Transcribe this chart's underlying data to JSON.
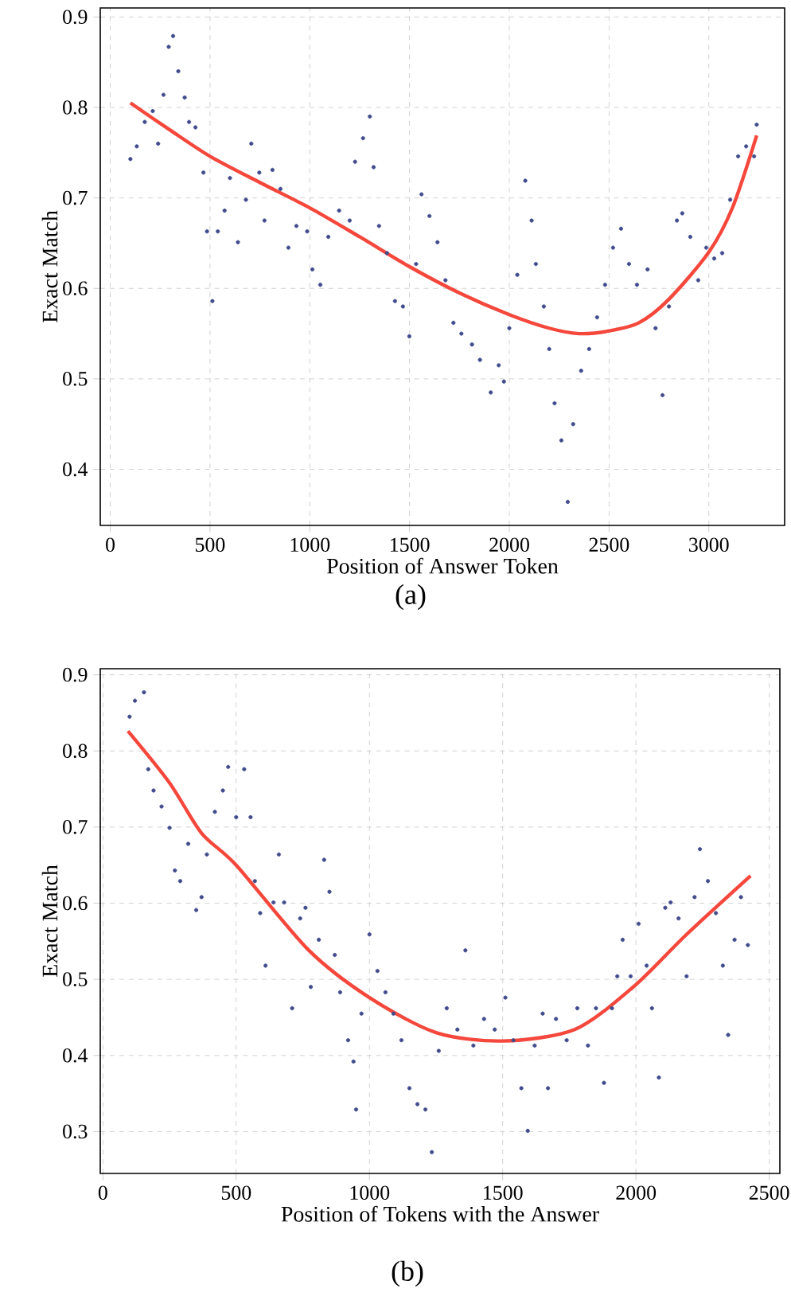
{
  "chart_data": [
    {
      "type": "scatter",
      "xlabel": "Position of Answer Token",
      "ylabel": "Exact Match",
      "annotations": [
        "(a)"
      ],
      "grid": true,
      "xlim": [
        -50,
        3380
      ],
      "ylim": [
        0.338,
        0.91
      ],
      "xticks": [
        0,
        500,
        1000,
        1500,
        2000,
        2500,
        3000
      ],
      "yticks": [
        0.4,
        0.5,
        0.6,
        0.7,
        0.8,
        0.9
      ],
      "series": [
        {
          "type": "scatter",
          "marker": "circle",
          "color": "#414b8c",
          "x": [
            101,
            133,
            173,
            213,
            240,
            267,
            293,
            315,
            341,
            373,
            395,
            427,
            467,
            485,
            512,
            539,
            573,
            600,
            640,
            680,
            707,
            747,
            773,
            813,
            853,
            893,
            933,
            987,
            1013,
            1053,
            1093,
            1147,
            1200,
            1227,
            1267,
            1301,
            1320,
            1347,
            1387,
            1427,
            1467,
            1499,
            1533,
            1560,
            1600,
            1640,
            1680,
            1720,
            1760,
            1813,
            1853,
            1907,
            1947,
            1973,
            2000,
            2040,
            2080,
            2112,
            2133,
            2173,
            2200,
            2227,
            2261,
            2293,
            2320,
            2360,
            2400,
            2440,
            2480,
            2520,
            2560,
            2600,
            2640,
            2693,
            2733,
            2768,
            2800,
            2840,
            2867,
            2907,
            2947,
            2987,
            3027,
            3067,
            3107,
            3147,
            3187,
            3227,
            3240
          ],
          "values": [
            0.743,
            0.757,
            0.784,
            0.796,
            0.76,
            0.814,
            0.867,
            0.879,
            0.84,
            0.811,
            0.784,
            0.778,
            0.728,
            0.663,
            0.586,
            0.663,
            0.686,
            0.722,
            0.651,
            0.698,
            0.76,
            0.728,
            0.675,
            0.731,
            0.71,
            0.645,
            0.669,
            0.663,
            0.621,
            0.604,
            0.657,
            0.686,
            0.675,
            0.74,
            0.766,
            0.79,
            0.734,
            0.669,
            0.639,
            0.586,
            0.58,
            0.547,
            0.627,
            0.704,
            0.68,
            0.651,
            0.609,
            0.562,
            0.55,
            0.538,
            0.521,
            0.485,
            0.515,
            0.497,
            0.556,
            0.615,
            0.719,
            0.675,
            0.627,
            0.58,
            0.533,
            0.473,
            0.432,
            0.364,
            0.45,
            0.509,
            0.533,
            0.568,
            0.604,
            0.645,
            0.666,
            0.627,
            0.604,
            0.621,
            0.556,
            0.482,
            0.58,
            0.675,
            0.683,
            0.657,
            0.609,
            0.645,
            0.633,
            0.639,
            0.698,
            0.746,
            0.757,
            0.746,
            0.781
          ]
        },
        {
          "type": "line",
          "marker": "none",
          "color": "#f5473b",
          "x": [
            101,
            300,
            500,
            750,
            1000,
            1250,
            1500,
            1750,
            2000,
            2200,
            2350,
            2500,
            2650,
            2800,
            3000,
            3120,
            3240
          ],
          "values": [
            0.805,
            0.775,
            0.746,
            0.717,
            0.689,
            0.657,
            0.624,
            0.595,
            0.571,
            0.556,
            0.55,
            0.553,
            0.562,
            0.588,
            0.64,
            0.69,
            0.769
          ]
        }
      ]
    },
    {
      "type": "scatter",
      "xlabel": "Position of Tokens with the Answer",
      "ylabel": "Exact Match",
      "annotations": [
        "(b)"
      ],
      "grid": true,
      "xlim": [
        -10,
        2540
      ],
      "ylim": [
        0.245,
        0.908
      ],
      "xticks": [
        0,
        500,
        1000,
        1500,
        2000,
        2500
      ],
      "yticks": [
        0.3,
        0.4,
        0.5,
        0.6,
        0.7,
        0.8,
        0.9
      ],
      "series": [
        {
          "type": "scatter",
          "marker": "circle",
          "color": "#414b8c",
          "x": [
            100,
            120,
            154,
            170,
            190,
            220,
            250,
            270,
            290,
            320,
            350,
            370,
            390,
            420,
            450,
            470,
            500,
            530,
            554,
            570,
            590,
            610,
            640,
            660,
            680,
            710,
            740,
            760,
            780,
            810,
            830,
            850,
            870,
            890,
            920,
            940,
            950,
            970,
            1000,
            1030,
            1060,
            1090,
            1120,
            1150,
            1180,
            1210,
            1234,
            1260,
            1290,
            1330,
            1360,
            1390,
            1430,
            1470,
            1510,
            1540,
            1570,
            1594,
            1620,
            1650,
            1670,
            1700,
            1740,
            1780,
            1820,
            1850,
            1880,
            1910,
            1930,
            1950,
            1980,
            2010,
            2040,
            2060,
            2086,
            2110,
            2130,
            2160,
            2190,
            2220,
            2240,
            2270,
            2300,
            2326,
            2346,
            2370,
            2394,
            2420
          ],
          "values": [
            0.845,
            0.866,
            0.877,
            0.776,
            0.748,
            0.727,
            0.699,
            0.643,
            0.629,
            0.678,
            0.591,
            0.608,
            0.664,
            0.72,
            0.748,
            0.779,
            0.713,
            0.776,
            0.713,
            0.629,
            0.587,
            0.518,
            0.601,
            0.664,
            0.601,
            0.462,
            0.58,
            0.594,
            0.49,
            0.552,
            0.657,
            0.615,
            0.532,
            0.483,
            0.42,
            0.392,
            0.329,
            0.455,
            0.559,
            0.511,
            0.483,
            0.455,
            0.42,
            0.357,
            0.336,
            0.329,
            0.273,
            0.406,
            0.462,
            0.434,
            0.538,
            0.413,
            0.448,
            0.434,
            0.476,
            0.42,
            0.357,
            0.301,
            0.413,
            0.455,
            0.357,
            0.448,
            0.42,
            0.462,
            0.413,
            0.462,
            0.364,
            0.462,
            0.504,
            0.552,
            0.504,
            0.573,
            0.518,
            0.462,
            0.371,
            0.594,
            0.601,
            0.58,
            0.504,
            0.608,
            0.671,
            0.629,
            0.587,
            0.518,
            0.427,
            0.552,
            0.608,
            0.545
          ]
        },
        {
          "type": "line",
          "marker": "none",
          "color": "#f5473b",
          "x": [
            94,
            250,
            370,
            500,
            770,
            1000,
            1250,
            1500,
            1770,
            1990,
            2190,
            2430
          ],
          "values": [
            0.826,
            0.758,
            0.692,
            0.65,
            0.539,
            0.476,
            0.43,
            0.419,
            0.434,
            0.49,
            0.559,
            0.636
          ]
        }
      ]
    }
  ]
}
